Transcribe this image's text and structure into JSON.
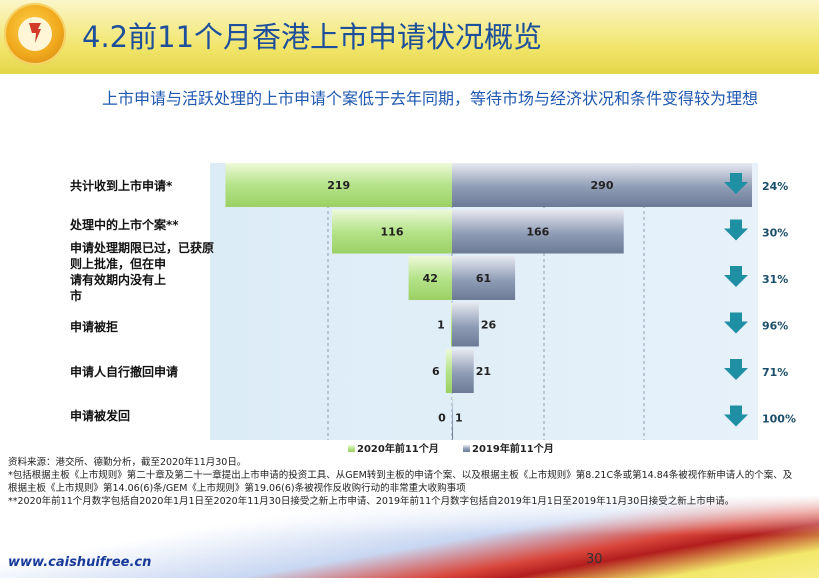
{
  "header": {
    "title": "4.2前11个月香港上市申请状况概览"
  },
  "subtitle": "上市申请与活跃处理的上市申请个案低于去年同期，等待市场与经济状况和条件变得较为理想",
  "chart_data": {
    "type": "bar",
    "orientation": "horizontal-butterfly",
    "categories": [
      "共计收到上市申请*",
      "处理中的上市个案**",
      "申请处理期限已过，已获原则上批准，但在申请有效期内没有上市",
      "申请被拒",
      "申请人自行撤回申请",
      "申请被发回"
    ],
    "series": [
      {
        "name": "2020年前11个月",
        "values": [
          219,
          116,
          42,
          1,
          6,
          0
        ],
        "color": "#b5e38a"
      },
      {
        "name": "2019年前11个月",
        "values": [
          290,
          166,
          61,
          26,
          21,
          1
        ],
        "color": "#8f9cb5"
      }
    ],
    "change_labels": [
      "24%",
      "30%",
      "31%",
      "96%",
      "71%",
      "100%"
    ],
    "change_direction": "down",
    "arrow_color": "#1f8fa3",
    "legend_position": "bottom-center"
  },
  "footer": {
    "source": "资料来源：港交所、德勤分析，截至2020年11月30日。",
    "note1": "*包括根据主板《上市规则》第二十章及第二十一章提出上市申请的投资工具、从GEM转到主板的申请个案、以及根据主板《上市规则》第8.21C条或第14.84条被视作新申请人的个案、及根据主板《上市规则》第14.06(6)条/GEM《上市规则》第19.06(6)条被视作反收购行动的非常重大收购事项",
    "note2": "**2020年前11个月数字包括自2020年1月1日至2020年11月30日接受之新上市申请、2019年前11个月数字包括自2019年1月1日至2019年11月30日接受之新上市申请。"
  },
  "bottom": {
    "site": "www.caishuifree.cn",
    "page_number": "30"
  }
}
